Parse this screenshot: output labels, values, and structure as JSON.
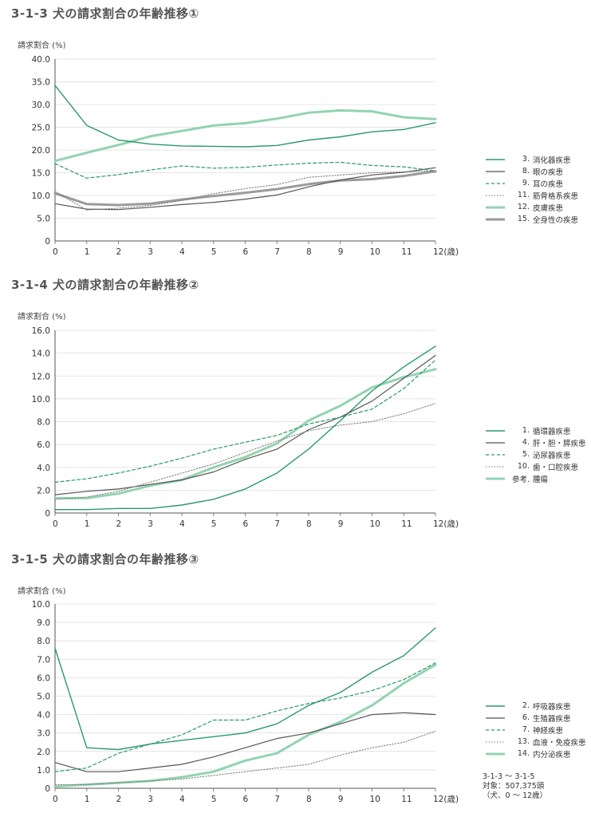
{
  "styles": {
    "3": {
      "color": "#2a9a6a",
      "width": 1.4,
      "dash": ""
    },
    "8": {
      "color": "#555555",
      "width": 1.2,
      "dash": ""
    },
    "9": {
      "color": "#2a9a6a",
      "width": 1.2,
      "dash": "4,3"
    },
    "11": {
      "color": "#777777",
      "width": 1.0,
      "dash": "1.5,2"
    },
    "12": {
      "color": "#93d3b0",
      "width": 3.0,
      "dash": ""
    },
    "15": {
      "color": "#9a9a9a",
      "width": 3.0,
      "dash": ""
    }
  },
  "footnote": [
    "3-1-3 ～ 3-1-5",
    "対象：507,375頭",
    "（犬、0 ～ 12歳）"
  ],
  "chart_data": [
    {
      "type": "line",
      "title": "3-1-3  犬の請求割合の年齢推移①",
      "ylabel": "請求割合 (%)",
      "x": [
        0,
        1,
        2,
        3,
        4,
        5,
        6,
        7,
        8,
        9,
        10,
        11,
        12
      ],
      "xticks": [
        "0",
        "1",
        "2",
        "3",
        "4",
        "5",
        "6",
        "7",
        "8",
        "9",
        "10",
        "11",
        "12(歳)"
      ],
      "ylim": [
        0,
        40
      ],
      "yticks": [
        "0",
        "5.0",
        "10.0",
        "15.0",
        "20.0",
        "25.0",
        "30.0",
        "35.0",
        "40.0"
      ],
      "grid": true,
      "legend": "right",
      "series": [
        {
          "num": "3.",
          "name": "消化器疾患",
          "style": "3",
          "values": [
            34.2,
            25.4,
            22.2,
            21.3,
            20.9,
            20.8,
            20.7,
            21.0,
            22.2,
            22.9,
            24.0,
            24.5,
            26.0
          ]
        },
        {
          "num": "8.",
          "name": "眼の疾患",
          "style": "8",
          "values": [
            8.2,
            7.0,
            6.9,
            7.4,
            8.0,
            8.5,
            9.2,
            10.1,
            11.9,
            13.4,
            14.5,
            15.1,
            16.1
          ]
        },
        {
          "num": "9.",
          "name": "耳の疾患",
          "style": "9",
          "values": [
            17.0,
            13.8,
            14.6,
            15.6,
            16.5,
            16.0,
            16.2,
            16.7,
            17.1,
            17.3,
            16.6,
            16.3,
            15.4
          ]
        },
        {
          "num": "11.",
          "name": "筋骨格系疾患",
          "style": "11",
          "values": [
            10.9,
            6.8,
            7.2,
            7.8,
            8.9,
            10.4,
            11.5,
            12.4,
            14.0,
            14.5,
            15.0,
            15.2,
            15.4
          ]
        },
        {
          "num": "12.",
          "name": "皮膚疾患",
          "style": "12",
          "values": [
            17.6,
            19.4,
            21.1,
            23.0,
            24.2,
            25.4,
            25.9,
            26.9,
            28.2,
            28.7,
            28.5,
            27.2,
            26.8
          ]
        },
        {
          "num": "15.",
          "name": "全身性の疾患",
          "style": "15",
          "values": [
            10.5,
            8.1,
            7.9,
            8.2,
            9.1,
            9.9,
            10.6,
            11.4,
            12.5,
            13.3,
            13.6,
            14.3,
            15.3
          ]
        }
      ]
    },
    {
      "type": "line",
      "title": "3-1-4  犬の請求割合の年齢推移②",
      "ylabel": "請求割合 (%)",
      "x": [
        0,
        1,
        2,
        3,
        4,
        5,
        6,
        7,
        8,
        9,
        10,
        11,
        12
      ],
      "xticks": [
        "0",
        "1",
        "2",
        "3",
        "4",
        "5",
        "6",
        "7",
        "8",
        "9",
        "10",
        "11",
        "12(歳)"
      ],
      "ylim": [
        0,
        16
      ],
      "yticks": [
        "0",
        "2.0",
        "4.0",
        "6.0",
        "8.0",
        "10.0",
        "12.0",
        "14.0",
        "16.0"
      ],
      "grid": true,
      "legend": "right",
      "series": [
        {
          "num": "1.",
          "name": "循環器疾患",
          "style": "3",
          "values": [
            0.3,
            0.3,
            0.4,
            0.4,
            0.7,
            1.2,
            2.1,
            3.5,
            5.6,
            8.1,
            10.7,
            12.8,
            14.6
          ]
        },
        {
          "num": "4.",
          "name": "肝・胆・膵疾患",
          "style": "8",
          "values": [
            1.6,
            1.9,
            2.1,
            2.5,
            2.9,
            3.6,
            4.7,
            5.6,
            7.3,
            8.4,
            9.8,
            11.8,
            13.8
          ]
        },
        {
          "num": "5.",
          "name": "泌尿器疾患",
          "style": "9",
          "values": [
            2.7,
            3.0,
            3.5,
            4.1,
            4.8,
            5.6,
            6.2,
            6.8,
            7.8,
            8.4,
            9.1,
            10.9,
            13.4
          ]
        },
        {
          "num": "10.",
          "name": "歯・口腔疾患",
          "style": "11",
          "values": [
            1.2,
            1.4,
            1.9,
            2.7,
            3.5,
            4.3,
            5.3,
            6.3,
            7.2,
            7.7,
            8.0,
            8.7,
            9.6
          ]
        },
        {
          "num": "参考.",
          "name": "腫瘍",
          "style": "12",
          "values": [
            1.3,
            1.3,
            1.7,
            2.4,
            2.9,
            4.0,
            4.9,
            6.1,
            8.1,
            9.4,
            11.0,
            11.9,
            12.6
          ]
        }
      ]
    },
    {
      "type": "line",
      "title": "3-1-5  犬の請求割合の年齢推移③",
      "ylabel": "請求割合 (%)",
      "x": [
        0,
        1,
        2,
        3,
        4,
        5,
        6,
        7,
        8,
        9,
        10,
        11,
        12
      ],
      "xticks": [
        "0",
        "1",
        "2",
        "3",
        "4",
        "5",
        "6",
        "7",
        "8",
        "9",
        "10",
        "11",
        "12(歳)"
      ],
      "ylim": [
        0,
        10
      ],
      "yticks": [
        "0",
        "1.0",
        "2.0",
        "3.0",
        "4.0",
        "5.0",
        "6.0",
        "7.0",
        "8.0",
        "9.0",
        "10.0"
      ],
      "grid": true,
      "legend": "right",
      "series": [
        {
          "num": "2.",
          "name": "呼吸器疾患",
          "style": "3",
          "values": [
            7.6,
            2.2,
            2.1,
            2.4,
            2.6,
            2.8,
            3.0,
            3.5,
            4.5,
            5.2,
            6.3,
            7.2,
            8.7
          ]
        },
        {
          "num": "6.",
          "name": "生殖器疾患",
          "style": "8",
          "values": [
            1.4,
            0.9,
            0.9,
            1.1,
            1.3,
            1.7,
            2.2,
            2.7,
            3.0,
            3.5,
            4.0,
            4.1,
            4.0
          ]
        },
        {
          "num": "7.",
          "name": "神経疾患",
          "style": "9",
          "values": [
            0.9,
            1.1,
            1.9,
            2.4,
            2.9,
            3.7,
            3.7,
            4.2,
            4.6,
            4.9,
            5.3,
            5.9,
            6.8
          ]
        },
        {
          "num": "13.",
          "name": "血液・免疫疾患",
          "style": "11",
          "values": [
            0.2,
            0.2,
            0.3,
            0.4,
            0.5,
            0.7,
            0.9,
            1.1,
            1.3,
            1.8,
            2.2,
            2.5,
            3.1
          ]
        },
        {
          "num": "14.",
          "name": "内分泌疾患",
          "style": "12",
          "values": [
            0.1,
            0.2,
            0.3,
            0.4,
            0.6,
            0.9,
            1.5,
            1.9,
            2.9,
            3.6,
            4.5,
            5.7,
            6.7
          ]
        }
      ]
    }
  ]
}
